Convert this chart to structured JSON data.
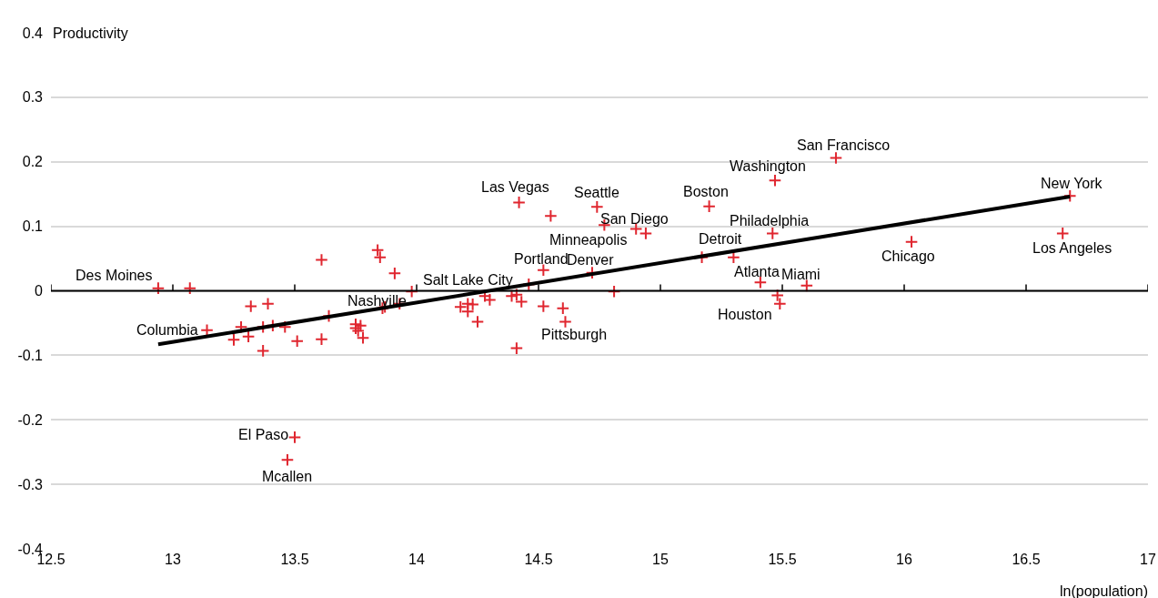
{
  "chart_data": {
    "type": "scatter",
    "xlabel": "ln(population)",
    "ylabel": "Productivity",
    "xlim": [
      12.5,
      17
    ],
    "xticks": [
      12.5,
      13,
      13.5,
      14,
      14.5,
      15,
      15.5,
      16,
      16.5,
      17
    ],
    "ylim": [
      -0.4,
      0.4
    ],
    "yticks": [
      -0.4,
      -0.3,
      -0.2,
      -0.1,
      0,
      0.1,
      0.2,
      0.3,
      0.4
    ],
    "grid": "y",
    "series": [
      {
        "marker": "cross",
        "color": "#e0262f",
        "x": [
          12.94,
          13.07,
          13.14,
          13.25,
          13.28,
          13.31,
          13.32,
          13.37,
          13.37,
          13.39,
          13.41,
          13.46,
          13.51,
          13.61,
          13.61,
          13.64,
          13.75,
          13.75,
          13.76,
          13.77,
          13.78,
          13.84,
          13.85,
          13.91,
          13.86,
          13.87,
          13.93,
          13.98,
          14.18,
          14.21,
          14.21,
          14.23,
          14.25,
          14.28,
          14.3,
          14.39,
          14.41,
          14.43,
          14.46,
          14.52,
          14.52,
          14.6,
          14.61,
          14.41,
          14.42,
          14.55,
          14.74,
          14.77,
          14.9,
          14.94,
          14.72,
          14.81,
          15.2,
          15.17,
          15.3,
          15.72,
          15.47,
          15.46,
          15.41,
          15.48,
          15.49,
          15.6,
          16.03,
          16.68,
          16.65,
          13.5,
          13.47
        ],
        "values": [
          0.004,
          0.004,
          -0.061,
          -0.076,
          -0.056,
          -0.071,
          -0.024,
          -0.093,
          -0.056,
          -0.02,
          -0.054,
          -0.056,
          -0.078,
          -0.075,
          0.048,
          -0.039,
          -0.052,
          -0.058,
          -0.062,
          -0.054,
          -0.073,
          0.063,
          0.052,
          0.027,
          -0.027,
          -0.025,
          -0.02,
          -0.001,
          -0.025,
          -0.02,
          -0.032,
          -0.021,
          -0.048,
          -0.008,
          -0.014,
          -0.008,
          -0.006,
          -0.017,
          0.01,
          0.032,
          -0.024,
          -0.027,
          -0.048,
          -0.089,
          0.137,
          0.116,
          0.13,
          0.102,
          0.096,
          0.089,
          0.028,
          -0.001,
          0.131,
          0.052,
          0.052,
          0.206,
          0.171,
          0.089,
          0.013,
          -0.007,
          -0.02,
          0.008,
          0.076,
          0.147,
          0.089,
          -0.227,
          -0.262
        ]
      },
      {
        "type": "line",
        "color": "#000000",
        "x": [
          12.94,
          16.68
        ],
        "values": [
          -0.083,
          0.146
        ]
      }
    ],
    "annotations": [
      {
        "text": "Des Moines",
        "x": 12.94,
        "y": 0.004
      },
      {
        "text": "Columbia",
        "x": 13.14,
        "y": -0.061
      },
      {
        "text": "El Paso",
        "x": 13.5,
        "y": -0.227
      },
      {
        "text": "Mcallen",
        "x": 13.47,
        "y": -0.262
      },
      {
        "text": "Nashville",
        "x": 13.98,
        "y": -0.001
      },
      {
        "text": "Salt Lake City",
        "x": 14.21,
        "y": -0.02
      },
      {
        "text": "Portland",
        "x": 14.52,
        "y": 0.032
      },
      {
        "text": "Denver",
        "x": 14.72,
        "y": 0.028
      },
      {
        "text": "Pittsburgh",
        "x": 14.61,
        "y": -0.048
      },
      {
        "text": "Las Vegas",
        "x": 14.42,
        "y": 0.137
      },
      {
        "text": "Seattle",
        "x": 14.74,
        "y": 0.13
      },
      {
        "text": "San Diego",
        "x": 14.77,
        "y": 0.102
      },
      {
        "text": "Minneapolis",
        "x": 14.9,
        "y": 0.096
      },
      {
        "text": "Boston",
        "x": 15.2,
        "y": 0.131
      },
      {
        "text": "Detroit",
        "x": 15.3,
        "y": 0.052
      },
      {
        "text": "Washington",
        "x": 15.47,
        "y": 0.171
      },
      {
        "text": "San Francisco",
        "x": 15.72,
        "y": 0.206
      },
      {
        "text": "Philadelphia",
        "x": 15.46,
        "y": 0.089
      },
      {
        "text": "Atlanta",
        "x": 15.41,
        "y": 0.013
      },
      {
        "text": "Miami",
        "x": 15.6,
        "y": 0.008
      },
      {
        "text": "Houston",
        "x": 15.49,
        "y": -0.02
      },
      {
        "text": "Chicago",
        "x": 16.03,
        "y": 0.076
      },
      {
        "text": "New York",
        "x": 16.68,
        "y": 0.147
      },
      {
        "text": "Los Angeles",
        "x": 16.65,
        "y": 0.089
      }
    ]
  }
}
